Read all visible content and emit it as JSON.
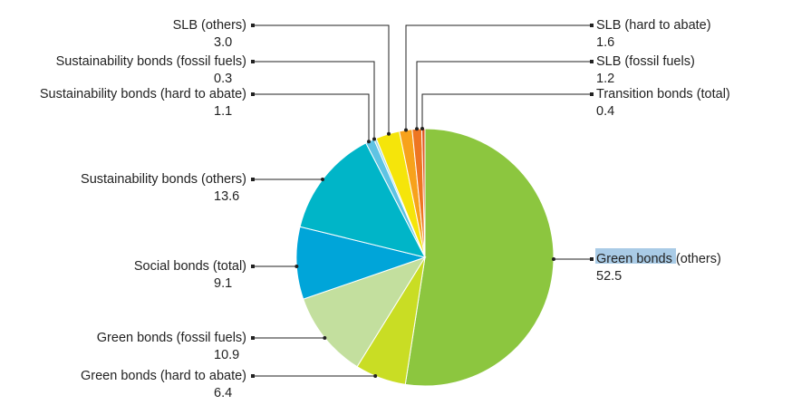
{
  "chart_data": {
    "type": "pie",
    "title": "",
    "slices": [
      {
        "label": "Green bonds (others)",
        "value": 52.5,
        "display": "52.5",
        "color": "#8cc63f"
      },
      {
        "label": "Green bonds (hard to abate)",
        "value": 6.4,
        "display": "6.4",
        "color": "#c9dd24"
      },
      {
        "label": "Green bonds (fossil fuels)",
        "value": 10.9,
        "display": "10.9",
        "color": "#c3df9e"
      },
      {
        "label": "Social bonds (total)",
        "value": 9.1,
        "display": "9.1",
        "color": "#00a5d9"
      },
      {
        "label": "Sustainability bonds (others)",
        "value": 13.6,
        "display": "13.6",
        "color": "#00b5c8"
      },
      {
        "label": "Sustainability bonds (hard to abate)",
        "value": 1.1,
        "display": "1.1",
        "color": "#5fc3e3"
      },
      {
        "label": "Sustainability bonds (fossil fuels)",
        "value": 0.3,
        "display": "0.3",
        "color": "#9fd9ec"
      },
      {
        "label": "SLB (others)",
        "value": 3.0,
        "display": "3.0",
        "color": "#f5e50a"
      },
      {
        "label": "SLB (hard to abate)",
        "value": 1.6,
        "display": "1.6",
        "color": "#f7a21b"
      },
      {
        "label": "SLB (fossil fuels)",
        "value": 1.2,
        "display": "1.2",
        "color": "#ee7622"
      },
      {
        "label": "Transition bonds (total)",
        "value": 0.4,
        "display": "0.4",
        "color": "#e05a24"
      }
    ],
    "start": "12 o'clock",
    "direction": "clockwise",
    "legend": "none; each slice has a leader line to its label and value"
  }
}
